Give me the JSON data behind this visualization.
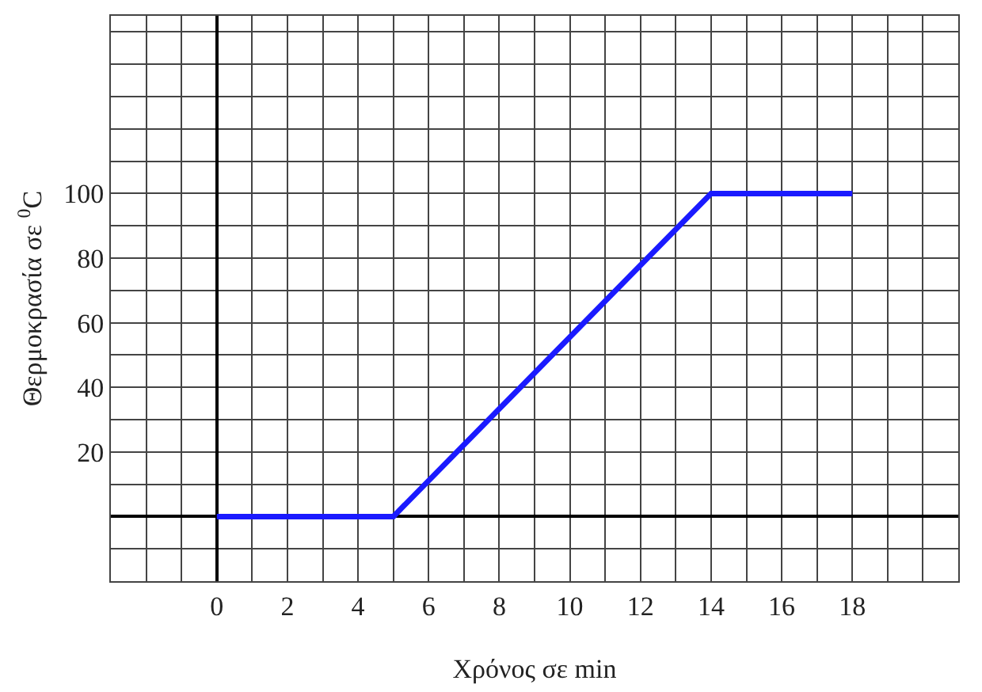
{
  "chart_data": {
    "type": "line",
    "xlabel": "Χρόνος σε min",
    "ylabel": "Θερμοκρασία σε $^{0}$C",
    "x": [
      0,
      5,
      14,
      18
    ],
    "series": [
      {
        "color": "#1a1aff",
        "values": [
          0,
          0,
          100,
          100
        ]
      }
    ],
    "xlim": [
      -3,
      21
    ],
    "ylim": [
      -20,
      155
    ],
    "xticks": [
      {
        "value": -3,
        "label": null
      },
      {
        "value": -2,
        "label": null
      },
      {
        "value": -1,
        "label": null
      },
      0,
      {
        "value": 1,
        "label": null
      },
      2,
      {
        "value": 3,
        "label": null
      },
      4,
      {
        "value": 5,
        "label": null
      },
      6,
      {
        "value": 7,
        "label": null
      },
      8,
      {
        "value": 9,
        "label": null
      },
      10,
      {
        "value": 11,
        "label": null
      },
      12,
      {
        "value": 13,
        "label": null
      },
      14,
      {
        "value": 15,
        "label": null
      },
      16,
      {
        "value": 17,
        "label": null
      },
      18,
      {
        "value": 19,
        "label": null
      },
      {
        "value": 20,
        "label": null
      },
      {
        "value": 21,
        "label": null
      }
    ],
    "yticks": [
      {
        "value": -20,
        "label": null
      },
      {
        "value": -10,
        "label": null
      },
      {
        "value": 0,
        "label": null
      },
      {
        "value": 10,
        "label": null
      },
      20,
      {
        "value": 30,
        "label": null
      },
      40,
      {
        "value": 50,
        "label": null
      },
      60,
      {
        "value": 70,
        "label": null
      },
      80,
      {
        "value": 90,
        "label": null
      },
      100,
      {
        "value": 110,
        "label": null
      },
      {
        "value": 120,
        "label": null
      },
      {
        "value": 130,
        "label": null
      },
      {
        "value": 140,
        "label": null
      },
      {
        "value": 150,
        "label": null
      }
    ],
    "grid": true,
    "marker": "none",
    "line_style": "solid"
  }
}
